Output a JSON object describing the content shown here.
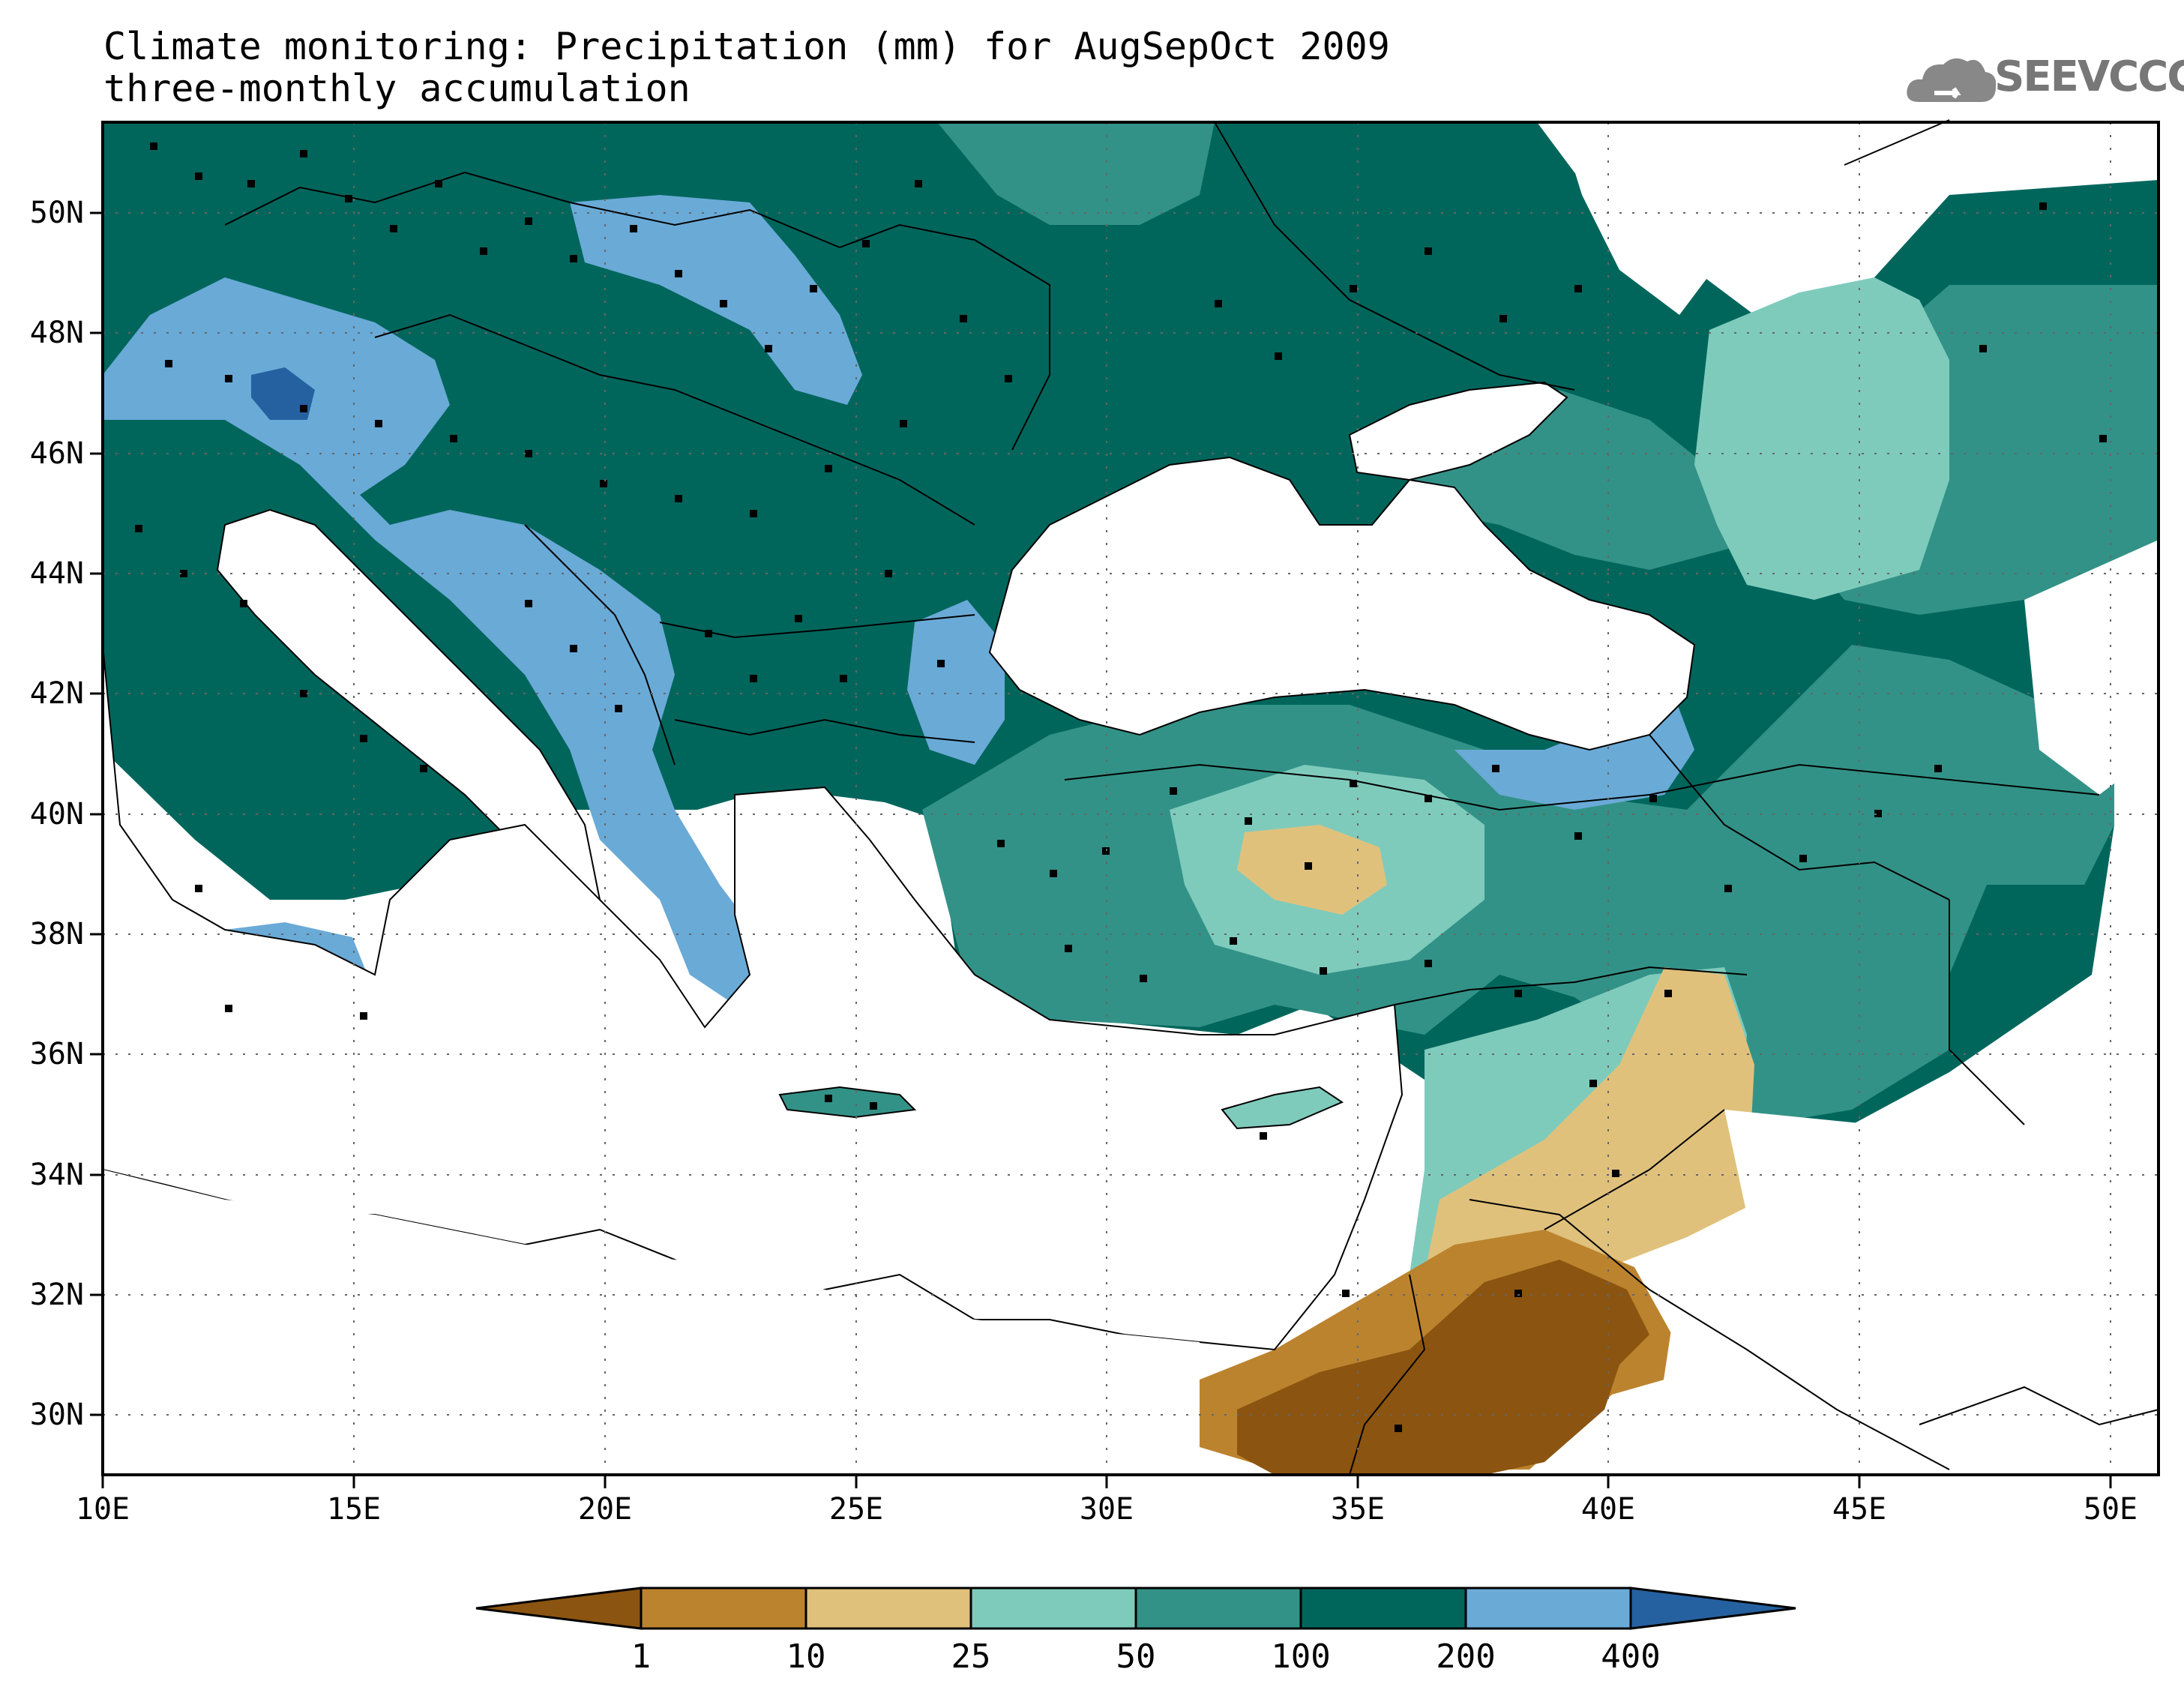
{
  "title_line1": "Climate monitoring: Precipitation (mm) for AugSepOct 2009",
  "title_line2": "three-monthly accumulation",
  "logo_text": "SEEVCCC",
  "logo_icon": "cloud-icon",
  "map": {
    "lon_range": [
      10,
      51
    ],
    "lat_range": [
      29,
      51.5
    ],
    "x_ticks": [
      "10E",
      "15E",
      "20E",
      "25E",
      "30E",
      "35E",
      "40E",
      "45E",
      "50E"
    ],
    "y_ticks": [
      "30N",
      "32N",
      "34N",
      "36N",
      "38N",
      "40N",
      "42N",
      "44N",
      "46N",
      "48N",
      "50N"
    ],
    "gridlines": "dotted"
  },
  "colorbar": {
    "labels": [
      "1",
      "10",
      "25",
      "50",
      "100",
      "200",
      "400"
    ],
    "colors": [
      "#8b5410",
      "#bc832e",
      "#e0c17c",
      "#7ecbbc",
      "#339287",
      "#00665c",
      "#6aaad7",
      "#2561a0"
    ]
  }
}
